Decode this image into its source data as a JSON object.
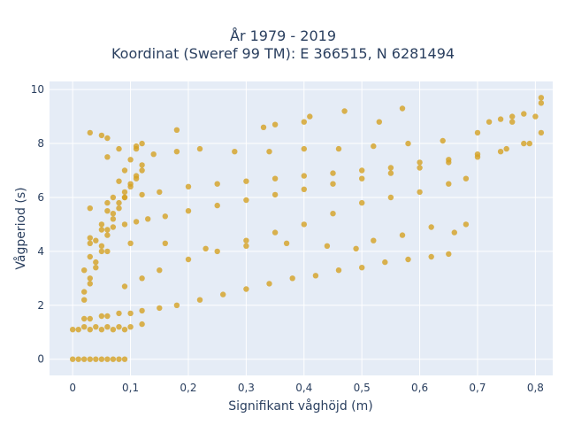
{
  "chart_data": {
    "type": "scatter",
    "title_lines": [
      "År 1979 - 2019",
      "Koordinat (Sweref 99 TM): E 366515, N 6281494"
    ],
    "xlabel": "Signifikant våghöjd (m)",
    "ylabel": "Vågperiod (s)",
    "xlim": [
      -0.04,
      0.83
    ],
    "ylim": [
      -0.6,
      10.3
    ],
    "x_ticks": [
      0,
      0.1,
      0.2,
      0.3,
      0.4,
      0.5,
      0.6,
      0.7,
      0.8
    ],
    "x_tick_labels": [
      "0",
      "0,1",
      "0,2",
      "0,3",
      "0,4",
      "0,5",
      "0,6",
      "0,7",
      "0,8"
    ],
    "y_ticks": [
      0,
      2,
      4,
      6,
      8,
      10
    ],
    "y_tick_labels": [
      "0",
      "2",
      "4",
      "6",
      "8",
      "10"
    ],
    "grid": true,
    "legend": "none",
    "series": [
      {
        "marker_color": "#d4a123",
        "x": [
          0,
          0.01,
          0.02,
          0.03,
          0.04,
          0.05,
          0.06,
          0.07,
          0.08,
          0.09,
          0,
          0.01,
          0.02,
          0.03,
          0.04,
          0.05,
          0.06,
          0.07,
          0.08,
          0.09,
          0.1,
          0.12,
          0.02,
          0.03,
          0.05,
          0.06,
          0.08,
          0.1,
          0.12,
          0.15,
          0.18,
          0.22,
          0.26,
          0.3,
          0.34,
          0.38,
          0.42,
          0.46,
          0.5,
          0.54,
          0.58,
          0.62,
          0.65,
          0.02,
          0.03,
          0.04,
          0.05,
          0.06,
          0.07,
          0.08,
          0.09,
          0.1,
          0.11,
          0.12,
          0.02,
          0.03,
          0.04,
          0.05,
          0.06,
          0.07,
          0.08,
          0.09,
          0.1,
          0.11,
          0.12,
          0.02,
          0.03,
          0.04,
          0.05,
          0.06,
          0.07,
          0.08,
          0.09,
          0.1,
          0.11,
          0.12,
          0.03,
          0.05,
          0.07,
          0.09,
          0.11,
          0.13,
          0.16,
          0.2,
          0.25,
          0.3,
          0.35,
          0.4,
          0.45,
          0.5,
          0.55,
          0.6,
          0.65,
          0.7,
          0.74,
          0.78,
          0.81,
          0.03,
          0.06,
          0.09,
          0.12,
          0.15,
          0.2,
          0.25,
          0.3,
          0.35,
          0.4,
          0.45,
          0.5,
          0.55,
          0.6,
          0.65,
          0.7,
          0.75,
          0.79,
          0.06,
          0.08,
          0.11,
          0.14,
          0.18,
          0.22,
          0.28,
          0.34,
          0.4,
          0.46,
          0.52,
          0.58,
          0.64,
          0.7,
          0.76,
          0.8,
          0.81,
          0.03,
          0.06,
          0.1,
          0.16,
          0.23,
          0.3,
          0.37,
          0.44,
          0.49,
          0.52,
          0.57,
          0.62,
          0.66,
          0.68,
          0.09,
          0.12,
          0.15,
          0.2,
          0.25,
          0.3,
          0.35,
          0.4,
          0.45,
          0.5,
          0.55,
          0.6,
          0.65,
          0.68,
          0.18,
          0.33,
          0.4,
          0.53,
          0.35,
          0.41,
          0.57,
          0.47,
          0.03,
          0.05,
          0.06,
          0.72,
          0.74,
          0.76,
          0.78,
          0.81
        ],
        "y": [
          0,
          0,
          0,
          0,
          0,
          0,
          0,
          0,
          0,
          0,
          1.1,
          1.1,
          1.2,
          1.1,
          1.2,
          1.1,
          1.2,
          1.1,
          1.2,
          1.1,
          1.2,
          1.3,
          1.5,
          1.5,
          1.6,
          1.6,
          1.7,
          1.7,
          1.8,
          1.9,
          2.0,
          2.2,
          2.4,
          2.6,
          2.8,
          3.0,
          3.1,
          3.3,
          3.4,
          3.6,
          3.7,
          3.8,
          3.9,
          2.5,
          3.0,
          3.6,
          4.2,
          4.8,
          5.4,
          5.8,
          6.2,
          6.5,
          6.8,
          7.0,
          2.2,
          2.8,
          3.4,
          4.0,
          4.6,
          5.2,
          5.6,
          6.0,
          6.4,
          6.7,
          7.2,
          3.3,
          3.8,
          4.4,
          5.0,
          5.5,
          6.0,
          6.6,
          7.0,
          7.4,
          7.8,
          8.0,
          4.5,
          4.8,
          4.9,
          5.0,
          5.1,
          5.2,
          5.3,
          5.5,
          5.7,
          5.9,
          6.1,
          6.3,
          6.5,
          6.7,
          6.9,
          7.1,
          7.3,
          7.5,
          7.7,
          8.0,
          8.4,
          5.6,
          5.8,
          6.0,
          6.1,
          6.2,
          6.4,
          6.5,
          6.6,
          6.7,
          6.8,
          6.9,
          7.0,
          7.1,
          7.3,
          7.4,
          7.6,
          7.8,
          8.0,
          7.5,
          7.8,
          7.9,
          7.6,
          7.7,
          7.8,
          7.7,
          7.7,
          7.8,
          7.8,
          7.9,
          8.0,
          8.1,
          8.4,
          8.8,
          9.0,
          9.5,
          4.3,
          4.0,
          4.3,
          4.3,
          4.1,
          4.2,
          4.3,
          4.2,
          4.1,
          4.4,
          4.6,
          4.9,
          4.7,
          5.0,
          2.7,
          3.0,
          3.3,
          3.7,
          4.0,
          4.4,
          4.7,
          5.0,
          5.4,
          5.8,
          6.0,
          6.2,
          6.5,
          6.7,
          8.5,
          8.6,
          8.8,
          8.8,
          8.7,
          9.0,
          9.3,
          9.2,
          8.4,
          8.3,
          8.2,
          8.8,
          8.9,
          9.0,
          9.1,
          9.7
        ]
      }
    ]
  }
}
